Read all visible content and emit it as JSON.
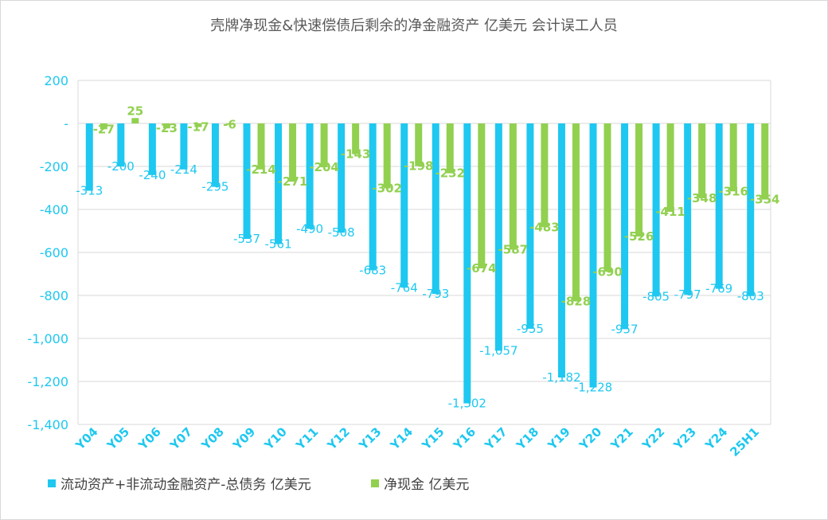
{
  "chart_data": {
    "type": "bar",
    "title": "壳牌净现金&快速偿债后剩余的净金融资产 亿美元 会计误工人员",
    "categories": [
      "Y04",
      "Y05",
      "Y06",
      "Y07",
      "Y08",
      "Y09",
      "Y10",
      "Y11",
      "Y12",
      "Y13",
      "Y14",
      "Y15",
      "Y16",
      "Y17",
      "Y18",
      "Y19",
      "Y20",
      "Y21",
      "Y22",
      "Y23",
      "Y24",
      "25H1"
    ],
    "series": [
      {
        "name": "流动资产+非流动金融资产-总债务 亿美元",
        "color": "#1ec8f0",
        "label_color": "#1ec8f0",
        "values": [
          -313,
          -200,
          -240,
          -214,
          -295,
          -537,
          -561,
          -490,
          -508,
          -683,
          -764,
          -793,
          -1302,
          -1057,
          -955,
          -1182,
          -1228,
          -957,
          -805,
          -797,
          -769,
          -803
        ]
      },
      {
        "name": "净现金 亿美元",
        "color": "#92d050",
        "label_color": "#92d050",
        "values": [
          -27,
          25,
          -23,
          -17,
          -6,
          -214,
          -271,
          -204,
          -143,
          -302,
          -198,
          -232,
          -674,
          -587,
          -483,
          -828,
          -690,
          -526,
          -411,
          -348,
          -316,
          -354
        ]
      }
    ],
    "ylim": [
      -1400,
      200
    ],
    "yticks": [
      200,
      0,
      -200,
      -400,
      -600,
      -800,
      -1000,
      -1200,
      -1400
    ],
    "ytick_labels": [
      "200",
      "-",
      "-200",
      "-400",
      "-600",
      "-800",
      "-1,000",
      "-1,200",
      "-1,400"
    ],
    "xlabel": "",
    "ylabel": "",
    "grid": true,
    "legend": "bottom-left"
  },
  "colors": {
    "axis_text": "#1ec8f0",
    "grid": "#d9d9d9"
  }
}
